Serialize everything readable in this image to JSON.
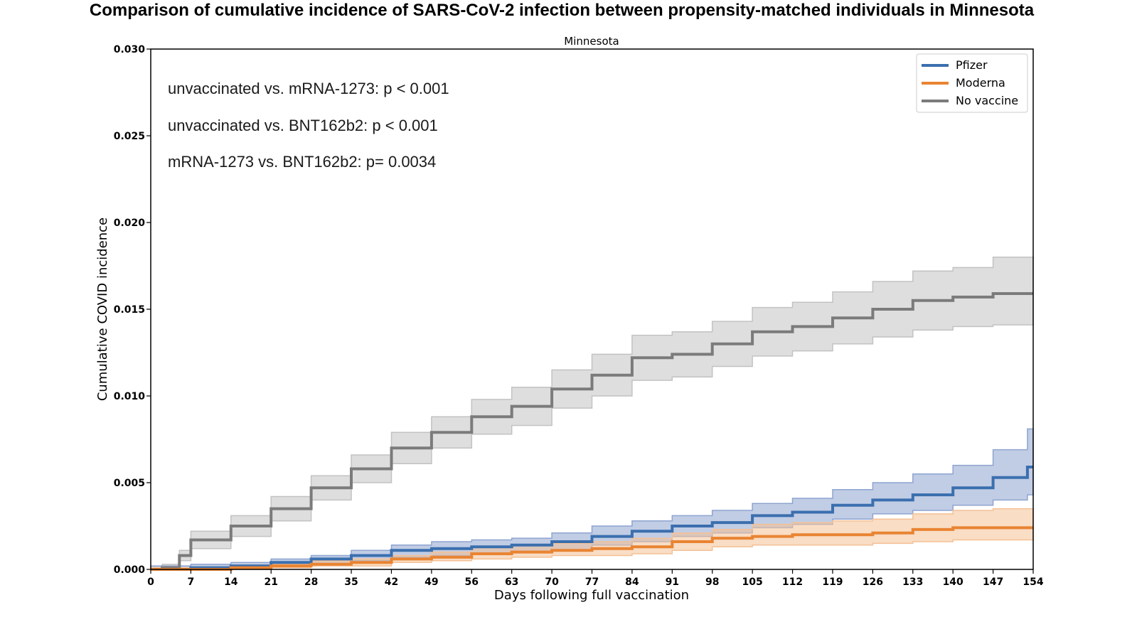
{
  "chart_data": {
    "type": "line",
    "title": "Comparison of cumulative incidence of SARS-CoV-2 infection between propensity-matched individuals in Minnesota",
    "subtitle": "Minnesota",
    "xlabel": "Days following full vaccination",
    "ylabel": "Cumulative COVID incidence",
    "xlim": [
      0,
      154
    ],
    "ylim": [
      0,
      0.03
    ],
    "xticks": [
      0,
      7,
      14,
      21,
      28,
      35,
      42,
      49,
      56,
      63,
      70,
      77,
      84,
      91,
      98,
      105,
      112,
      119,
      126,
      133,
      140,
      147,
      154
    ],
    "yticks": [
      "0.000",
      "0.005",
      "0.010",
      "0.015",
      "0.020",
      "0.025",
      "0.030"
    ],
    "legend_position": "top-right",
    "annotations": [
      "unvaccinated vs. mRNA-1273: p < 0.001",
      "unvaccinated vs. BNT162b2: p < 0.001",
      "mRNA-1273 vs. BNT162b2: p= 0.0034"
    ],
    "series": [
      {
        "name": "Pfizer",
        "color": "#3b6fae",
        "band_color": "#8ea4d0",
        "x": [
          0,
          7,
          14,
          21,
          28,
          35,
          42,
          49,
          56,
          63,
          70,
          77,
          84,
          91,
          98,
          105,
          112,
          119,
          126,
          133,
          140,
          147,
          153,
          154
        ],
        "y": [
          0,
          0.0001,
          0.0002,
          0.0004,
          0.0006,
          0.0008,
          0.0011,
          0.0012,
          0.0013,
          0.0014,
          0.0016,
          0.0019,
          0.0022,
          0.0025,
          0.0027,
          0.0031,
          0.0033,
          0.0037,
          0.004,
          0.0043,
          0.0047,
          0.0053,
          0.0059,
          0.0059
        ],
        "lower": [
          0,
          0.0,
          0.0001,
          0.0002,
          0.0003,
          0.0005,
          0.0007,
          0.0008,
          0.0009,
          0.001,
          0.0011,
          0.0014,
          0.0016,
          0.0019,
          0.0021,
          0.0024,
          0.0026,
          0.0029,
          0.0032,
          0.0034,
          0.0037,
          0.004,
          0.0043,
          0.0043
        ],
        "upper": [
          0.0002,
          0.0003,
          0.0004,
          0.0006,
          0.0008,
          0.0011,
          0.0014,
          0.0016,
          0.0017,
          0.0018,
          0.0021,
          0.0025,
          0.0028,
          0.0031,
          0.0034,
          0.0038,
          0.0041,
          0.0046,
          0.005,
          0.0055,
          0.006,
          0.0069,
          0.0081,
          0.0081
        ]
      },
      {
        "name": "Moderna",
        "color": "#e98432",
        "band_color": "#f4c195",
        "x": [
          0,
          7,
          14,
          21,
          28,
          35,
          42,
          49,
          56,
          63,
          70,
          77,
          84,
          91,
          98,
          105,
          112,
          119,
          126,
          133,
          140,
          147,
          154
        ],
        "y": [
          0,
          0.0,
          0.0001,
          0.0002,
          0.0003,
          0.0004,
          0.0006,
          0.0007,
          0.0009,
          0.001,
          0.0011,
          0.0012,
          0.0013,
          0.0016,
          0.0018,
          0.0019,
          0.002,
          0.002,
          0.0021,
          0.0023,
          0.0024,
          0.0024,
          0.0024
        ],
        "lower": [
          0,
          0.0,
          0.0,
          0.0001,
          0.0002,
          0.0002,
          0.0004,
          0.0005,
          0.0006,
          0.0007,
          0.0008,
          0.0008,
          0.0009,
          0.0011,
          0.0013,
          0.0014,
          0.0014,
          0.0014,
          0.0015,
          0.0016,
          0.0017,
          0.0017,
          0.0017
        ],
        "upper": [
          0.0001,
          0.0001,
          0.0002,
          0.0003,
          0.0005,
          0.0006,
          0.0008,
          0.001,
          0.0013,
          0.0014,
          0.0015,
          0.0016,
          0.0018,
          0.0021,
          0.0023,
          0.0026,
          0.0027,
          0.0028,
          0.0029,
          0.0032,
          0.0034,
          0.0035,
          0.0035
        ]
      },
      {
        "name": "No vaccine",
        "color": "#7b7b7b",
        "band_color": "#c2c2c2",
        "x": [
          0,
          2,
          5,
          7,
          14,
          21,
          28,
          35,
          42,
          49,
          56,
          63,
          70,
          77,
          84,
          91,
          98,
          105,
          112,
          119,
          126,
          133,
          140,
          147,
          154
        ],
        "y": [
          0,
          0.0001,
          0.0008,
          0.0017,
          0.0025,
          0.0035,
          0.0047,
          0.0058,
          0.007,
          0.0079,
          0.0088,
          0.0094,
          0.0104,
          0.0112,
          0.0122,
          0.0124,
          0.013,
          0.0137,
          0.014,
          0.0145,
          0.015,
          0.0155,
          0.0157,
          0.0159,
          0.0159
        ],
        "lower": [
          0,
          0.0,
          0.0005,
          0.0012,
          0.0019,
          0.0028,
          0.004,
          0.005,
          0.0061,
          0.007,
          0.0078,
          0.0083,
          0.0093,
          0.01,
          0.0109,
          0.0111,
          0.0117,
          0.0123,
          0.0126,
          0.013,
          0.0134,
          0.0138,
          0.014,
          0.0141,
          0.0141
        ],
        "upper": [
          0.0001,
          0.0003,
          0.0011,
          0.0022,
          0.0031,
          0.0042,
          0.0054,
          0.0066,
          0.0079,
          0.0088,
          0.0098,
          0.0105,
          0.0115,
          0.0124,
          0.0135,
          0.0137,
          0.0143,
          0.0151,
          0.0154,
          0.016,
          0.0166,
          0.0172,
          0.0174,
          0.018,
          0.018
        ]
      }
    ]
  }
}
